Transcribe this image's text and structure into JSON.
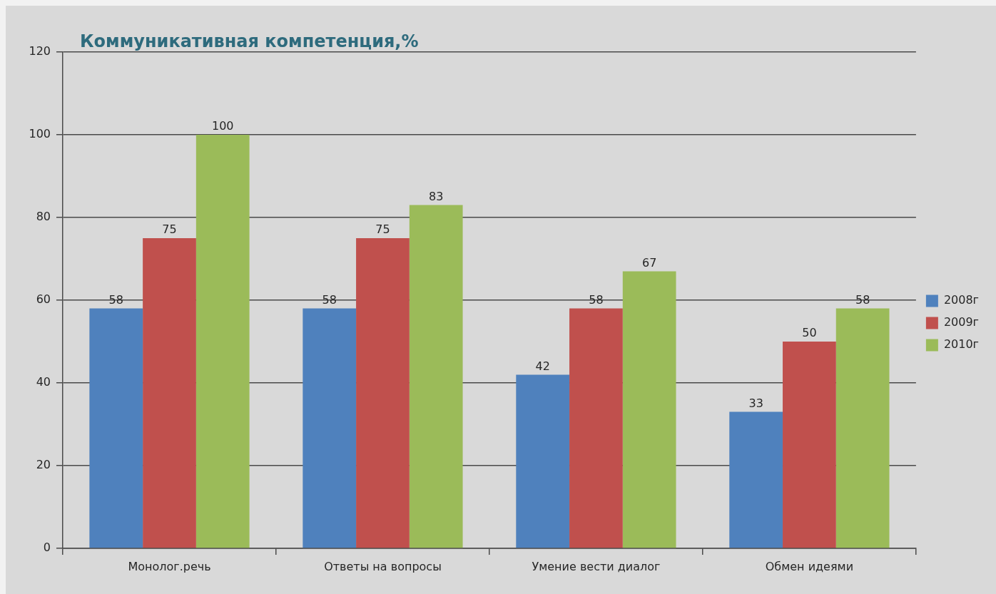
{
  "chart_data": {
    "type": "bar",
    "title": "Коммуникативная компетенция,%",
    "categories": [
      "Монолог.речь",
      "Ответы на вопросы",
      "Умение вести диалог",
      "Обмен идеями"
    ],
    "series": [
      {
        "name": "2008г",
        "color": "#4f81bd",
        "values": [
          58,
          58,
          42,
          33
        ]
      },
      {
        "name": "2009г",
        "color": "#c0504d",
        "values": [
          75,
          75,
          58,
          50
        ]
      },
      {
        "name": "2010г",
        "color": "#9bbb59",
        "values": [
          100,
          83,
          67,
          58
        ]
      }
    ],
    "ylim": [
      0,
      120
    ],
    "yticks": [
      0,
      20,
      40,
      60,
      80,
      100,
      120
    ],
    "grid": "y",
    "legend": "right",
    "data_labels": true
  }
}
